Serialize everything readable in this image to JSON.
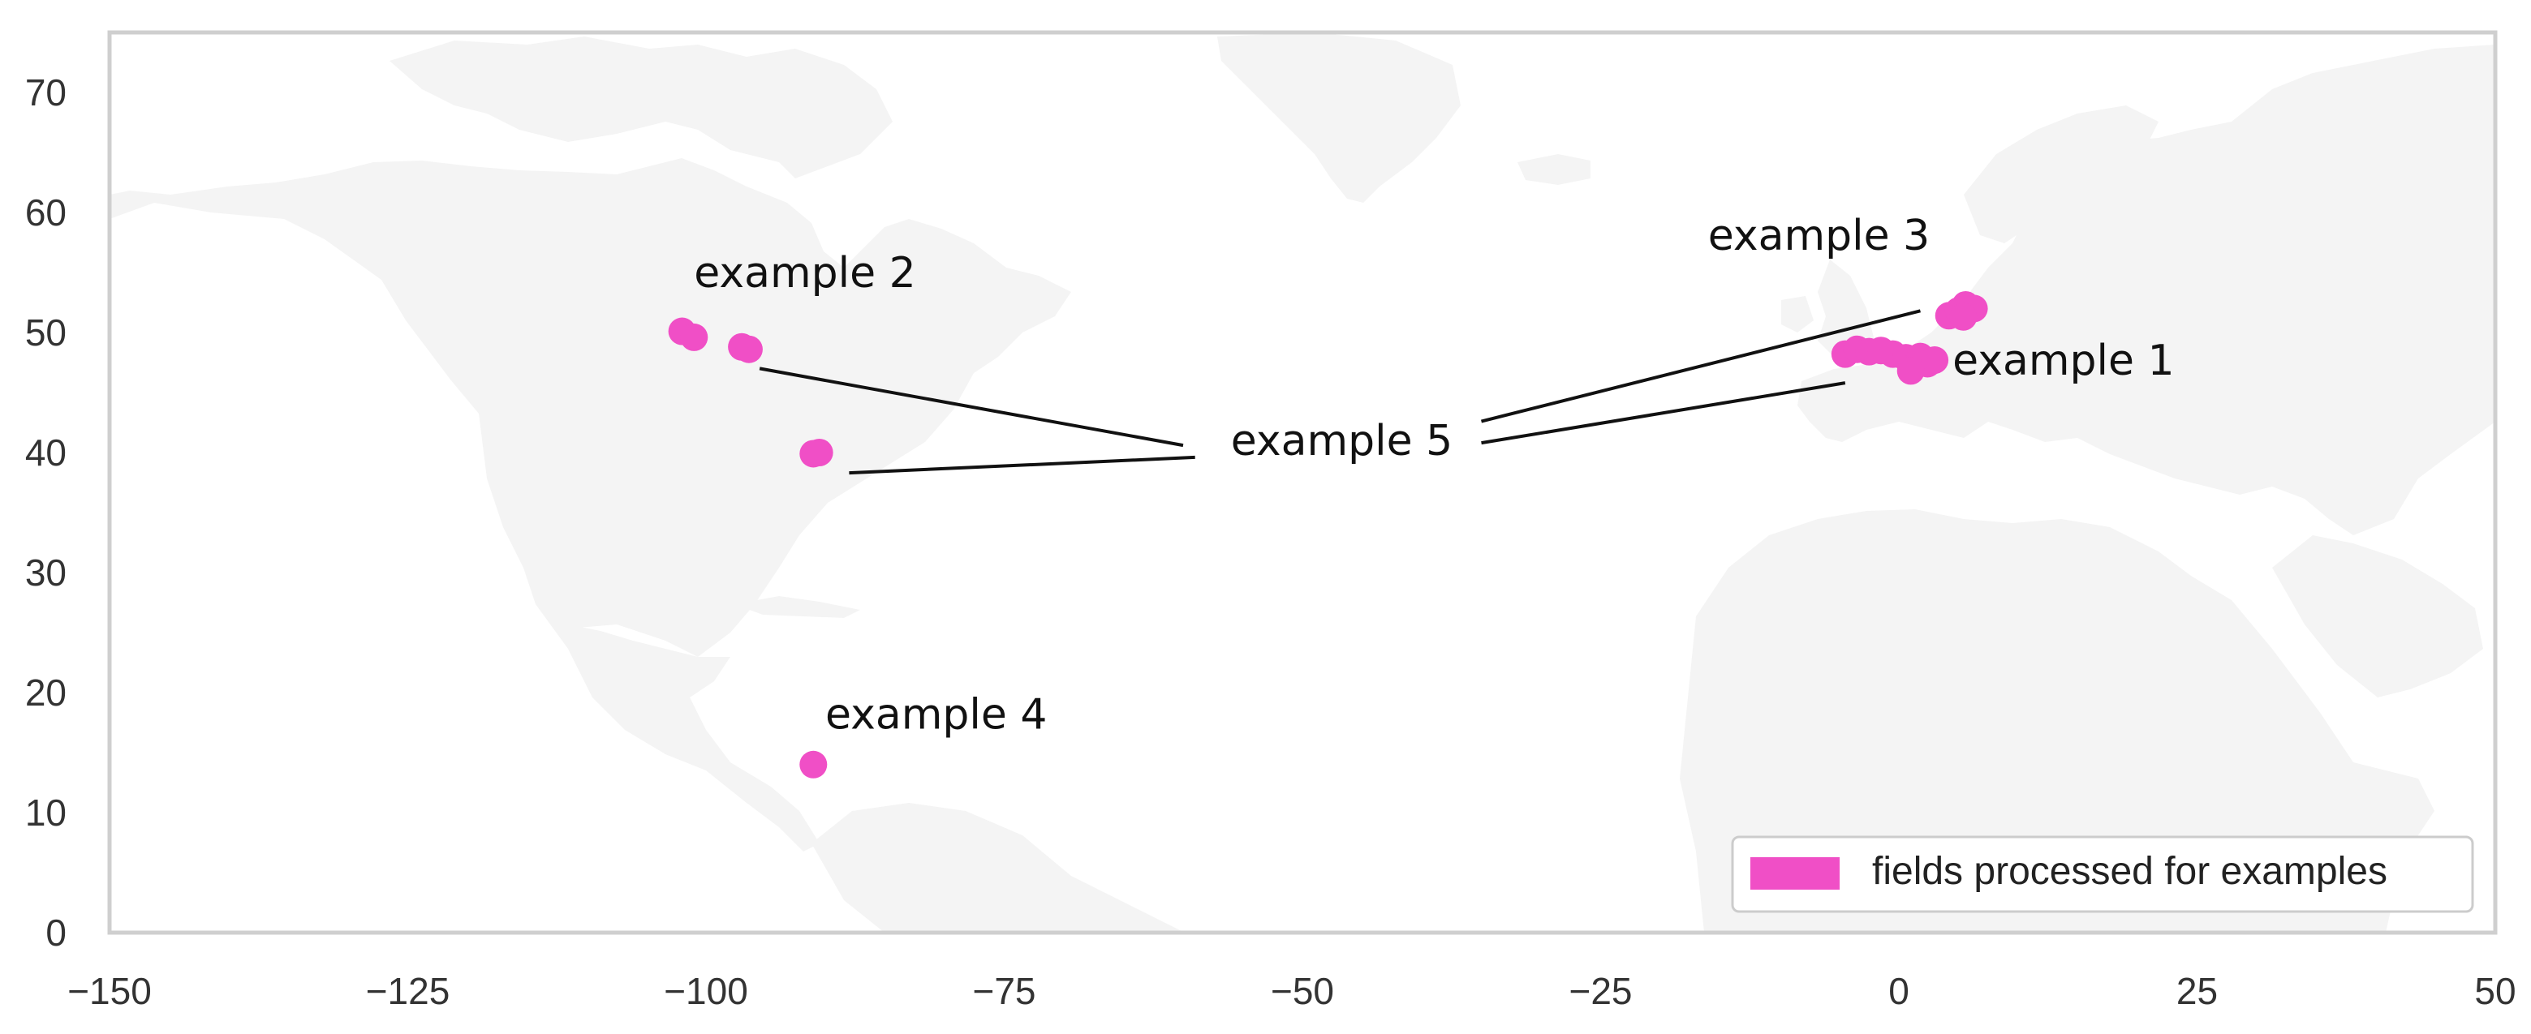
{
  "chart_data": {
    "type": "scatter",
    "title": "",
    "xlabel": "",
    "ylabel": "",
    "xlim": [
      -150,
      50
    ],
    "ylim": [
      0,
      75
    ],
    "x_ticks": [
      -150,
      -125,
      -100,
      -75,
      -50,
      -25,
      0,
      25,
      50
    ],
    "y_ticks": [
      0,
      10,
      20,
      30,
      40,
      50,
      60,
      70
    ],
    "x_tick_labels": [
      "−150",
      "−125",
      "−100",
      "−75",
      "−50",
      "−25",
      "0",
      "25",
      "50"
    ],
    "y_tick_labels": [
      "0",
      "10",
      "20",
      "30",
      "40",
      "50",
      "60",
      "70"
    ],
    "grid": false,
    "legend": {
      "placement": "bottom-right",
      "entries": [
        "fields processed for examples"
      ]
    },
    "colors": {
      "points": "#f04fc6",
      "land": "#f4f4f4",
      "frame": "#cfcfcf",
      "text": "#333333"
    },
    "series": [
      {
        "name": "fields processed for examples",
        "points": [
          {
            "x": -102,
            "y": 50.1
          },
          {
            "x": -101,
            "y": 49.6
          },
          {
            "x": -97,
            "y": 48.8
          },
          {
            "x": -96.4,
            "y": 48.6
          },
          {
            "x": -91,
            "y": 39.9
          },
          {
            "x": -90.5,
            "y": 40.0
          },
          {
            "x": -91,
            "y": 14.0
          },
          {
            "x": -4.5,
            "y": 48.2
          },
          {
            "x": -3.5,
            "y": 48.6
          },
          {
            "x": -2.5,
            "y": 48.4
          },
          {
            "x": -1.5,
            "y": 48.5
          },
          {
            "x": -0.5,
            "y": 48.2
          },
          {
            "x": 0.6,
            "y": 47.9
          },
          {
            "x": 1.2,
            "y": 47.1
          },
          {
            "x": 1.8,
            "y": 48.0
          },
          {
            "x": 2.4,
            "y": 47.4
          },
          {
            "x": 3.0,
            "y": 47.7
          },
          {
            "x": 1.0,
            "y": 46.8
          },
          {
            "x": 4.2,
            "y": 51.4
          },
          {
            "x": 5.0,
            "y": 51.8
          },
          {
            "x": 5.6,
            "y": 52.3
          },
          {
            "x": 6.3,
            "y": 52.0
          },
          {
            "x": 5.4,
            "y": 51.3
          }
        ]
      }
    ],
    "annotations": [
      {
        "text": "example 1",
        "x": 4.5,
        "y": 46.5
      },
      {
        "text": "example 2",
        "x": -101,
        "y": 53.8
      },
      {
        "text": "example 3",
        "x": -16,
        "y": 56.9
      },
      {
        "text": "example 4",
        "x": -90,
        "y": 17.0
      },
      {
        "text": "example 5",
        "x": -56,
        "y": 39.8
      }
    ],
    "leader_lines": [
      {
        "from": [
          -60,
          40.6
        ],
        "to": [
          -95.5,
          47.0
        ]
      },
      {
        "from": [
          -59,
          39.6
        ],
        "to": [
          -88,
          38.3
        ]
      },
      {
        "from": [
          -35,
          42.6
        ],
        "to": [
          1.8,
          51.8
        ]
      },
      {
        "from": [
          -35,
          40.8
        ],
        "to": [
          -4.5,
          45.8
        ]
      }
    ]
  }
}
